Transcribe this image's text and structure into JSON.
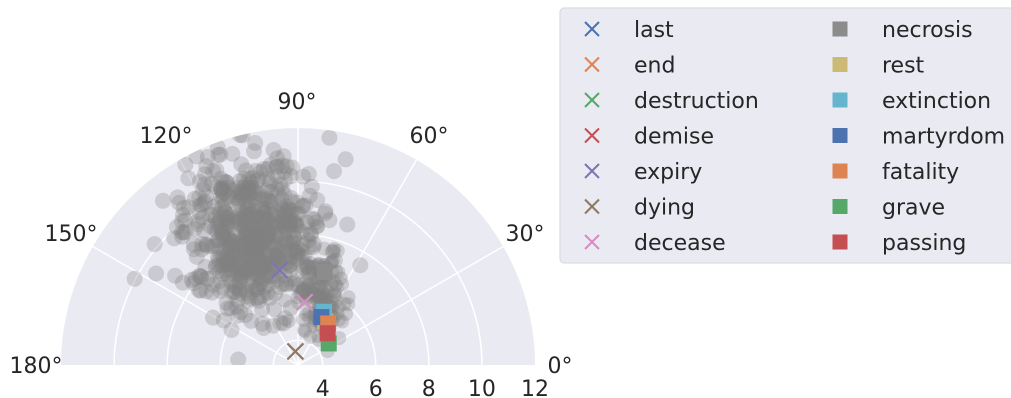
{
  "chart_data": {
    "type": "scatter",
    "projection": "polar",
    "theta_range_deg": [
      0,
      180
    ],
    "r_range": [
      0,
      12
    ],
    "theta_ticks": [
      "0°",
      "30°",
      "60°",
      "90°",
      "120°",
      "150°",
      "180°"
    ],
    "r_ticks": [
      "4",
      "6",
      "8",
      "10",
      "12"
    ],
    "grid": true,
    "legend_placement": "outside-right",
    "background_color": "#EAEAF2",
    "cloud_color": "#808080",
    "series": [
      {
        "name": "last",
        "marker": "x",
        "color": "#4C72B0",
        "points": []
      },
      {
        "name": "end",
        "marker": "x",
        "color": "#DD8452",
        "points": []
      },
      {
        "name": "destruction",
        "marker": "x",
        "color": "#55A868",
        "points": []
      },
      {
        "name": "demise",
        "marker": "x",
        "color": "#C44E52",
        "points": []
      },
      {
        "name": "expiry",
        "marker": "x",
        "color": "#8172B3",
        "points": [
          {
            "theta": 101,
            "r": 4.9
          }
        ]
      },
      {
        "name": "dying",
        "marker": "x",
        "color": "#937860",
        "points": [
          {
            "theta": 101,
            "r": 0.7
          }
        ]
      },
      {
        "name": "decease",
        "marker": "x",
        "color": "#DA8BC3",
        "points": [
          {
            "theta": 84,
            "r": 3.2
          }
        ]
      },
      {
        "name": "necrosis",
        "marker": "square",
        "color": "#8C8C8C",
        "points": [
          {
            "theta": 74,
            "r": 4.9
          }
        ]
      },
      {
        "name": "rest",
        "marker": "square",
        "color": "#CCB974",
        "points": [
          {
            "theta": 58,
            "r": 2.6
          }
        ]
      },
      {
        "name": "extinction",
        "marker": "square",
        "color": "#64B5CD",
        "points": [
          {
            "theta": 64,
            "r": 3.0
          }
        ]
      },
      {
        "name": "martyrdom",
        "marker": "square",
        "color": "#4C72B0",
        "points": [
          {
            "theta": 64,
            "r": 2.7
          }
        ]
      },
      {
        "name": "fatality",
        "marker": "square",
        "color": "#DD8452",
        "points": [
          {
            "theta": 54,
            "r": 2.6
          }
        ]
      },
      {
        "name": "grave",
        "marker": "square",
        "color": "#55A868",
        "points": [
          {
            "theta": 35,
            "r": 1.9
          }
        ]
      },
      {
        "name": "passing",
        "marker": "square",
        "color": "#C44E52",
        "points": [
          {
            "theta": 47,
            "r": 2.2
          }
        ]
      }
    ]
  }
}
